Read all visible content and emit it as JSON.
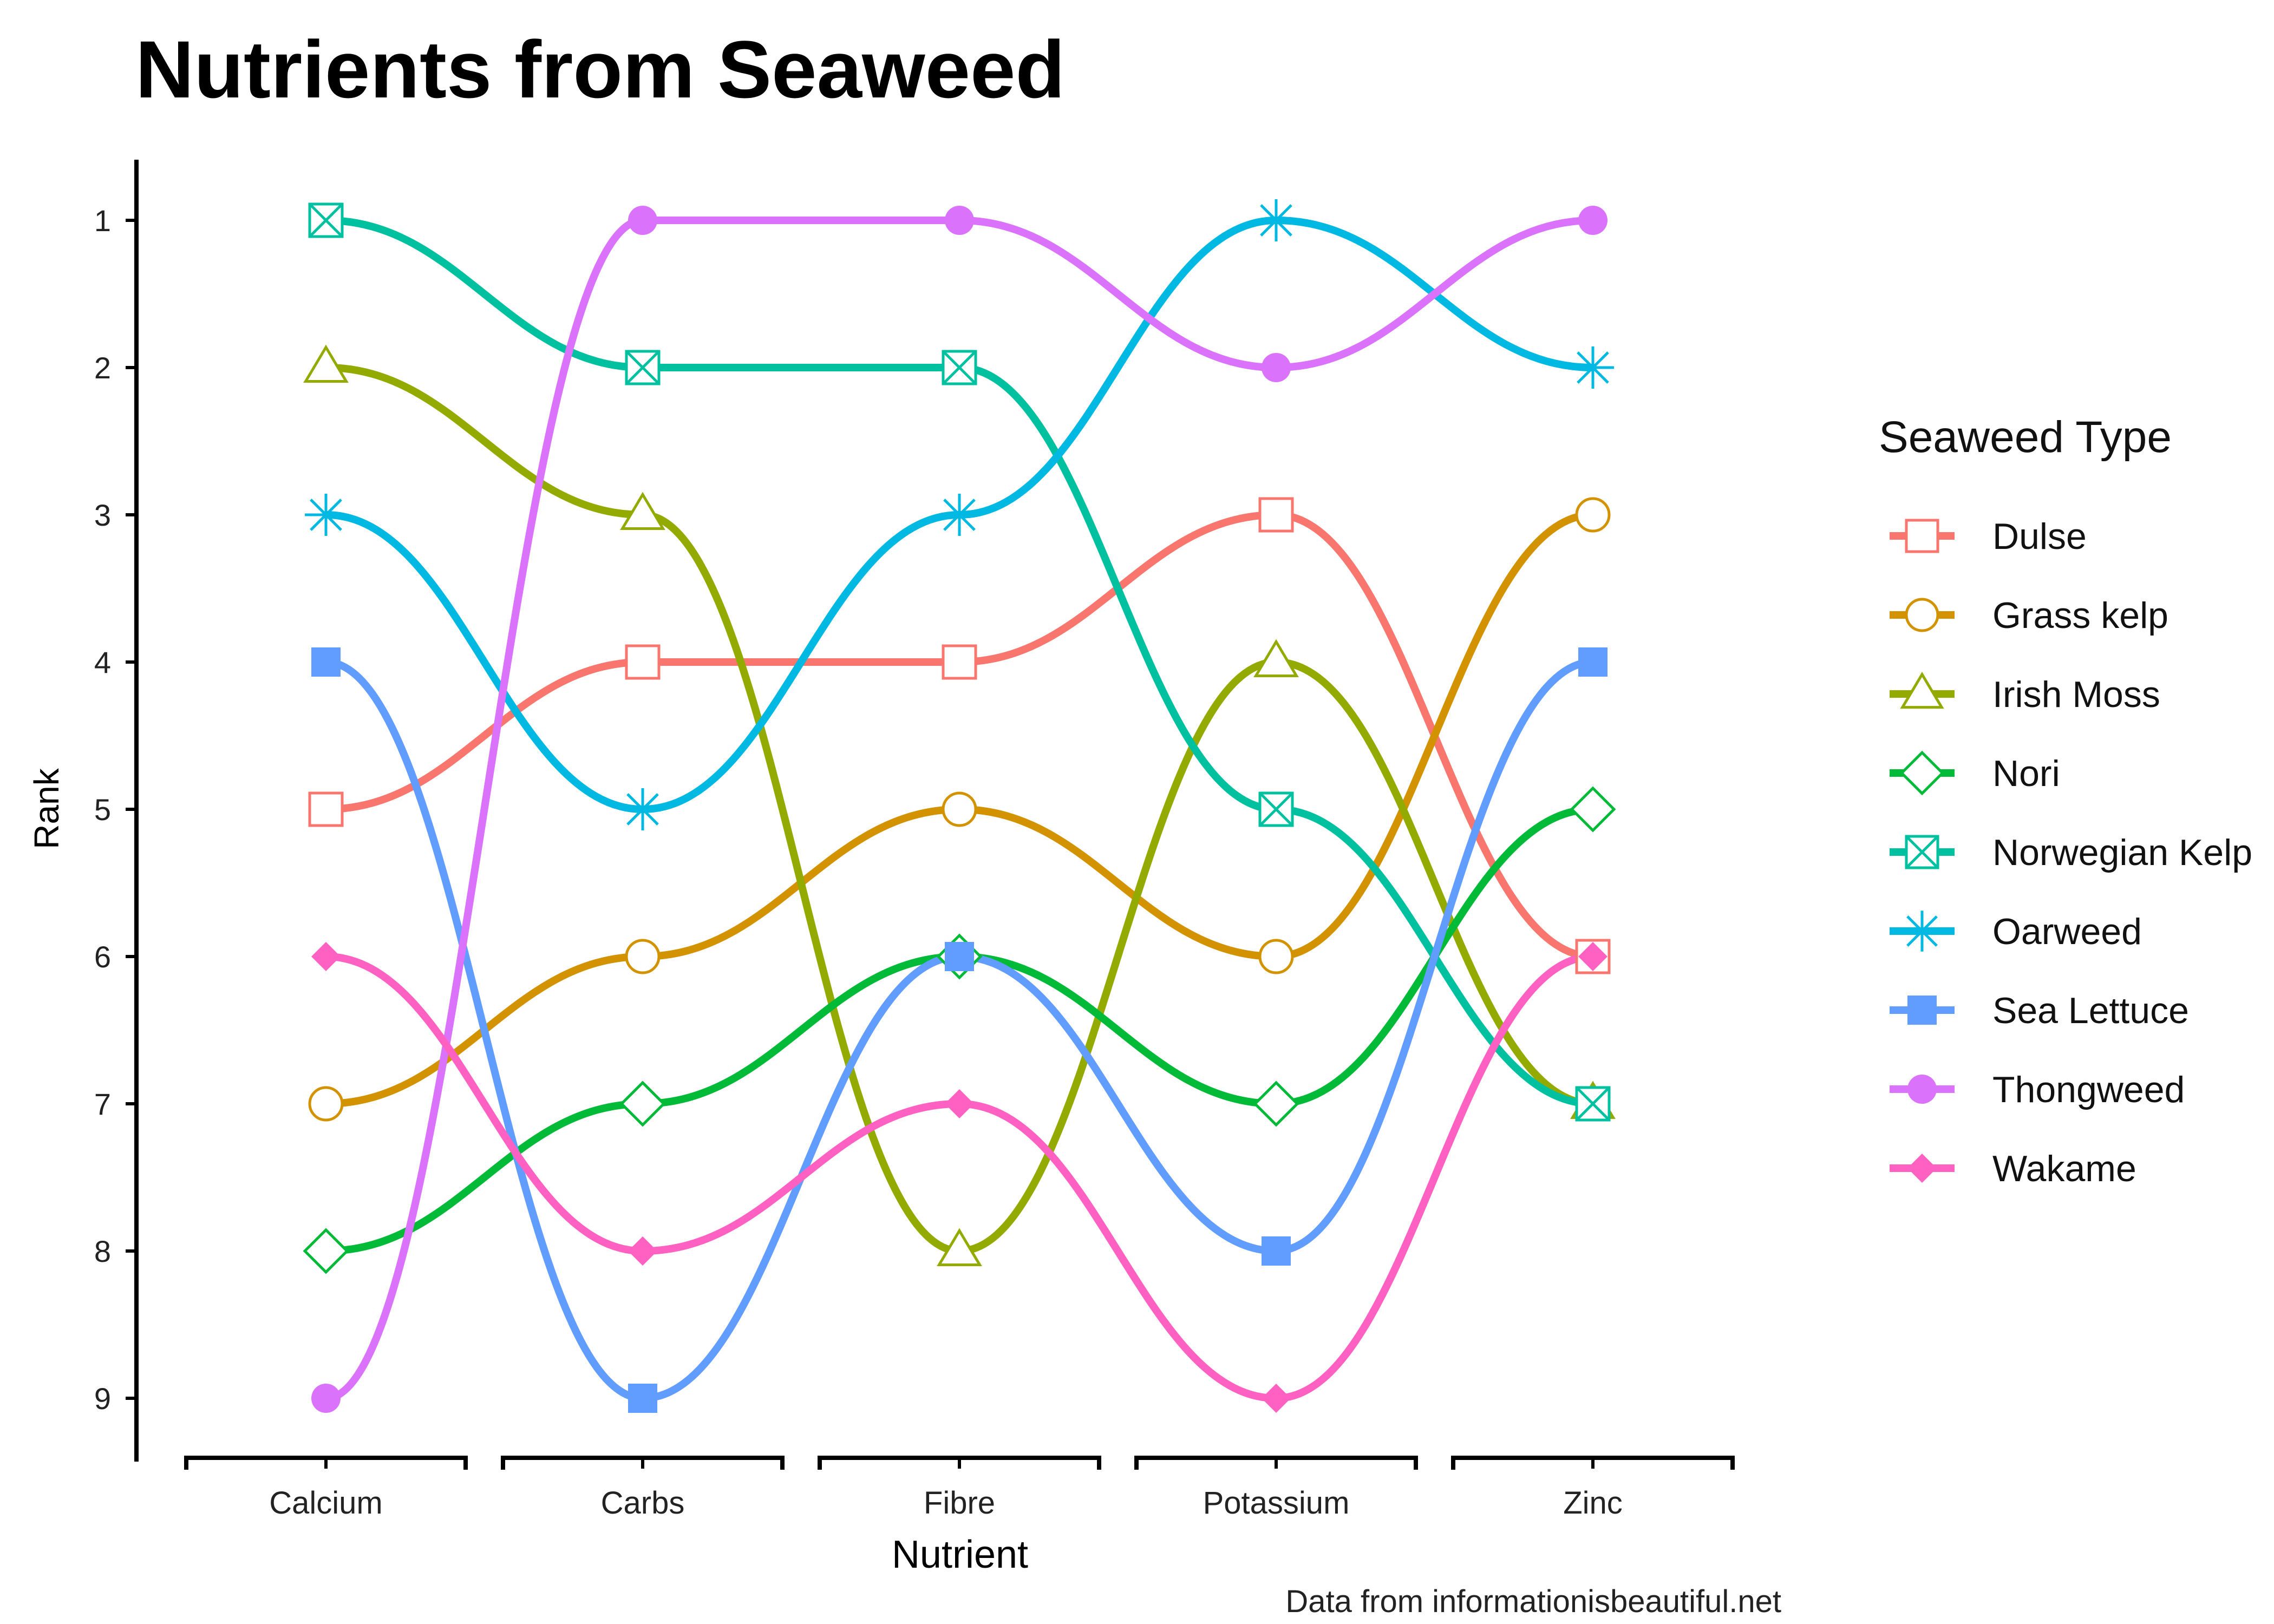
{
  "chart_data": {
    "type": "line",
    "subtype": "bump",
    "title": "Nutrients from Seaweed",
    "xlabel": "Nutrient",
    "ylabel": "Rank",
    "caption": "Data from informationisbeautiful.net",
    "categories": [
      "Calcium",
      "Carbs",
      "Fibre",
      "Potassium",
      "Zinc"
    ],
    "y_ticks": [
      "1",
      "2",
      "3",
      "4",
      "5",
      "6",
      "7",
      "8",
      "9"
    ],
    "ylim": [
      1,
      9
    ],
    "y_reversed": true,
    "grid": false,
    "legend_title": "Seaweed Type",
    "legend_position": "right",
    "series": [
      {
        "name": "Dulse",
        "color": "#F8766D",
        "marker": "square-open",
        "values": [
          5,
          4,
          4,
          3,
          6
        ]
      },
      {
        "name": "Grass kelp",
        "color": "#D39200",
        "marker": "circle-open",
        "values": [
          7,
          6,
          5,
          6,
          3
        ]
      },
      {
        "name": "Irish Moss",
        "color": "#93AA00",
        "marker": "triangle-open",
        "values": [
          2,
          3,
          8,
          4,
          7
        ]
      },
      {
        "name": "Nori",
        "color": "#00BA38",
        "marker": "diamond-open",
        "values": [
          8,
          7,
          6,
          7,
          5
        ]
      },
      {
        "name": "Norwegian Kelp",
        "color": "#00C19F",
        "marker": "square-cross",
        "values": [
          1,
          2,
          2,
          5,
          7
        ]
      },
      {
        "name": "Oarweed",
        "color": "#00B9E3",
        "marker": "asterisk",
        "values": [
          3,
          5,
          3,
          1,
          2
        ]
      },
      {
        "name": "Sea Lettuce",
        "color": "#619CFF",
        "marker": "square-filled",
        "values": [
          4,
          9,
          6,
          8,
          4
        ]
      },
      {
        "name": "Thongweed",
        "color": "#DB72FB",
        "marker": "circle-filled",
        "values": [
          9,
          1,
          1,
          2,
          1
        ]
      },
      {
        "name": "Wakame",
        "color": "#FF61C3",
        "marker": "diamond-filled",
        "values": [
          6,
          8,
          7,
          9,
          6
        ]
      }
    ]
  }
}
